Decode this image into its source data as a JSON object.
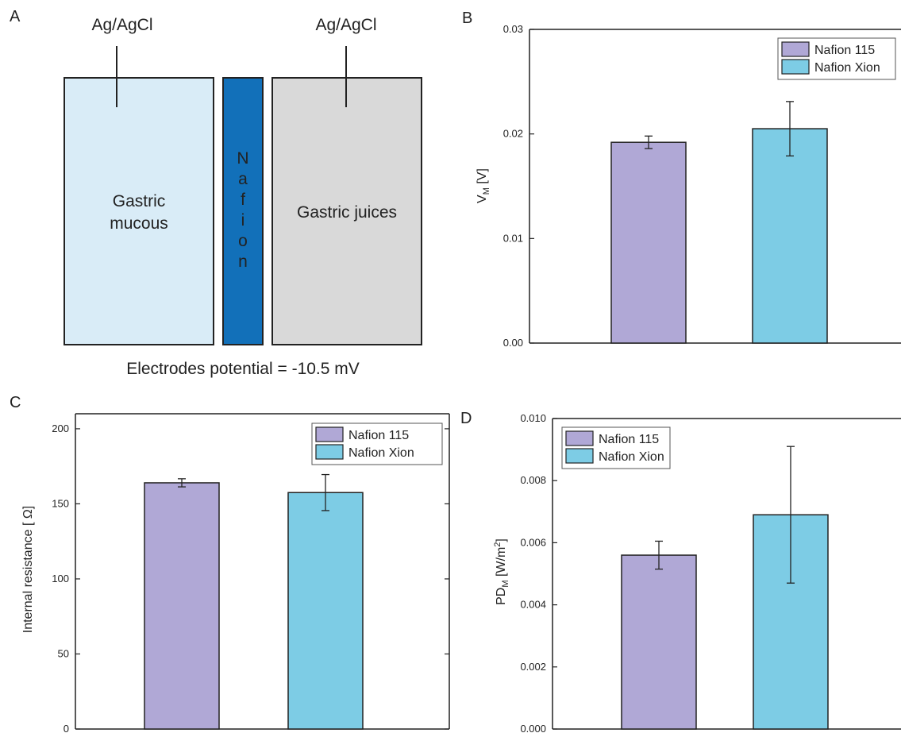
{
  "colors": {
    "nafion_115": "#b0a8d6",
    "nafion_xion": "#7dcce5",
    "mucous_fill": "#d9ecf7",
    "nafion_fill": "#1270b9",
    "juices_fill": "#d9d9d9"
  },
  "panels": {
    "a": "A",
    "b": "B",
    "c": "C",
    "d": "D"
  },
  "diagram": {
    "left_electrode_label": "Ag/AgCl",
    "right_electrode_label": "Ag/AgCl",
    "left_chamber_label_line1": "Gastric",
    "left_chamber_label_line2": "mucous",
    "membrane_letters": [
      "N",
      "a",
      "f",
      "i",
      "o",
      "n"
    ],
    "right_chamber_label": "Gastric juices",
    "caption": "Electrodes potential = -10.5 mV"
  },
  "chart_data": [
    {
      "panel": "B",
      "type": "bar",
      "categories": [
        "Nafion 115",
        "Nafion Xion"
      ],
      "values": [
        0.0192,
        0.0205
      ],
      "errors": [
        0.0006,
        0.0026
      ],
      "ylabel_main": "V",
      "ylabel_sub": "M",
      "ylabel_tail": " [V]",
      "ylim": [
        0,
        0.03
      ],
      "yticks": [
        0.0,
        0.01,
        0.02,
        0.03
      ],
      "ytick_labels": [
        "0.00",
        "0.01",
        "0.02",
        "0.03"
      ],
      "legend": [
        "Nafion 115",
        "Nafion Xion"
      ],
      "legend_position": "top-right"
    },
    {
      "panel": "C",
      "type": "bar",
      "categories": [
        "Nafion 115",
        "Nafion Xion"
      ],
      "values": [
        164,
        157.5
      ],
      "errors": [
        2.7,
        12
      ],
      "ylabel": "Internal resistance [  Ω]",
      "ylim": [
        0,
        210
      ],
      "yticks": [
        0,
        50,
        100,
        150,
        200
      ],
      "ytick_labels": [
        "0",
        "50",
        "100",
        "150",
        "200"
      ],
      "legend": [
        "Nafion 115",
        "Nafion Xion"
      ],
      "legend_position": "top-right"
    },
    {
      "panel": "D",
      "type": "bar",
      "categories": [
        "Nafion 115",
        "Nafion Xion"
      ],
      "values": [
        0.0056,
        0.0069
      ],
      "errors": [
        0.00045,
        0.0022
      ],
      "ylabel_main": "PD",
      "ylabel_sub": "M",
      "ylabel_tail": " [W/m",
      "ylabel_sup": "2",
      "ylabel_end": "]",
      "ylim": [
        0,
        0.01
      ],
      "yticks": [
        0.0,
        0.002,
        0.004,
        0.006,
        0.008,
        0.01
      ],
      "ytick_labels": [
        "0.000",
        "0.002",
        "0.004",
        "0.006",
        "0.008",
        "0.010"
      ],
      "legend": [
        "Nafion 115",
        "Nafion Xion"
      ],
      "legend_position": "top-left"
    }
  ]
}
